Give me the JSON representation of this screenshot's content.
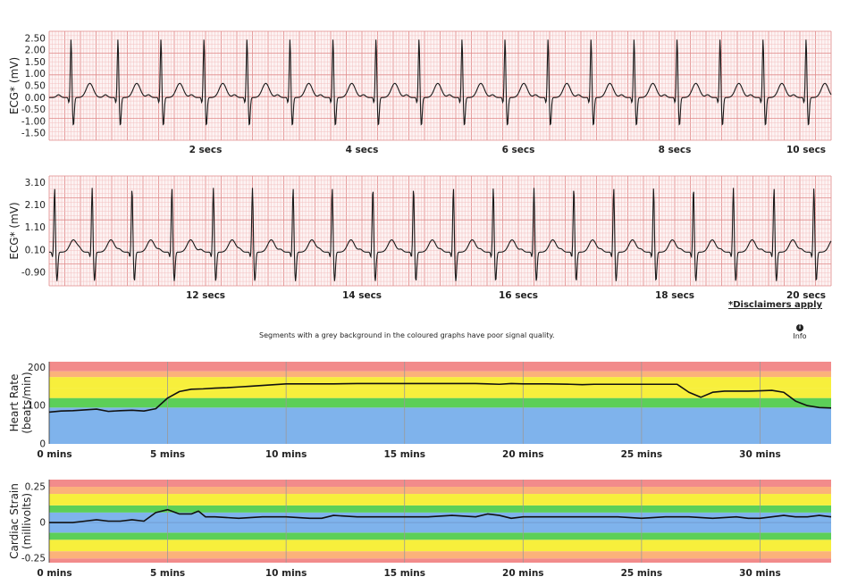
{
  "colors": {
    "grid_minor": "#f2c0c0",
    "grid_major": "#e08a8a",
    "ecg_bg": "#fdf3f3",
    "trace": "#1a1a1a",
    "zone_red": "#f28b8b",
    "zone_orange": "#fbb27a",
    "zone_yellow": "#f7ef3c",
    "zone_green": "#5ccf58",
    "zone_blue": "#7fb3ec",
    "grid_vline": "#9a9a9a"
  },
  "notes": {
    "disclaimer": "*Disclaimers apply",
    "signal_quality": "Segments with a grey background in the coloured graphs have poor signal quality.",
    "info_label": "Info",
    "info_icon": "info-icon"
  },
  "chart_data": [
    {
      "type": "line",
      "ylabel": "ECG* (mV)",
      "xlim": [
        0,
        10
      ],
      "ylim": [
        -1.8,
        2.8
      ],
      "yticks": [
        "2.50",
        "2.00",
        "1.50",
        "1.00",
        "0.50",
        "0.00",
        "-0.50",
        "-1.00",
        "-1.50"
      ],
      "ytick_values": [
        2.5,
        2.0,
        1.5,
        1.0,
        0.5,
        0.0,
        -0.5,
        -1.0,
        -1.5
      ],
      "xtick_labels": [
        "2 secs",
        "4 secs",
        "6 secs",
        "8 secs",
        "10 secs"
      ],
      "xtick_values": [
        2,
        4,
        6,
        8,
        10
      ],
      "beat_times": [
        0.28,
        0.88,
        1.43,
        1.98,
        2.53,
        3.08,
        3.63,
        4.18,
        4.73,
        5.28,
        5.83,
        6.38,
        6.93,
        7.48,
        8.03,
        8.58,
        9.13,
        9.68
      ],
      "r_amplitude_mV": 2.5,
      "s_amplitude_mV": -1.2,
      "t_amplitude_mV": 0.6
    },
    {
      "type": "line",
      "ylabel": "ECG* (mV)",
      "xlim": [
        10,
        20
      ],
      "ylim": [
        -1.5,
        3.4
      ],
      "yticks": [
        "3.10",
        "2.10",
        "1.10",
        "0.10",
        "-0.90"
      ],
      "ytick_values": [
        3.1,
        2.1,
        1.1,
        0.1,
        -0.9
      ],
      "xtick_labels": [
        "12 secs",
        "14 secs",
        "16 secs",
        "18 secs",
        "20 secs"
      ],
      "xtick_values": [
        12,
        14,
        16,
        18,
        20
      ],
      "beat_times": [
        10.07,
        10.55,
        11.06,
        11.57,
        12.1,
        12.6,
        13.12,
        13.62,
        14.14,
        14.66,
        15.17,
        15.68,
        16.2,
        16.71,
        17.22,
        17.73,
        18.24,
        18.75,
        19.27,
        19.78
      ],
      "r_amplitude_mV": 2.9,
      "s_amplitude_mV": -1.3,
      "t_amplitude_mV": 0.55
    },
    {
      "type": "area",
      "ylabel": "Heart Rate\n(beats/min)",
      "xlim": [
        0,
        33
      ],
      "ylim": [
        0,
        215
      ],
      "yticks": [
        "200",
        "100",
        "0"
      ],
      "ytick_values": [
        200,
        100,
        0
      ],
      "xtick_labels": [
        "0 mins",
        "5 mins",
        "10 mins",
        "15 mins",
        "20 mins",
        "25 mins",
        "30 mins"
      ],
      "xtick_values": [
        0,
        5,
        10,
        15,
        20,
        25,
        30
      ],
      "zones": [
        {
          "from": 0,
          "to": 95,
          "color": "zone_blue"
        },
        {
          "from": 95,
          "to": 120,
          "color": "zone_green"
        },
        {
          "from": 120,
          "to": 145,
          "color": "zone_yellow"
        },
        {
          "from": 145,
          "to": 175,
          "color": "zone_yellow"
        },
        {
          "from": 175,
          "to": 190,
          "color": "zone_orange"
        },
        {
          "from": 190,
          "to": 215,
          "color": "zone_red"
        }
      ],
      "x": [
        0,
        0.5,
        1,
        1.5,
        2,
        2.5,
        3,
        3.5,
        4,
        4.5,
        5,
        5.5,
        6,
        6.5,
        7,
        7.5,
        8,
        8.5,
        9,
        9.5,
        10,
        11,
        12,
        13,
        14,
        15,
        16,
        17,
        18,
        18.5,
        19,
        19.5,
        20,
        21,
        22,
        22.5,
        23,
        24,
        25,
        26,
        26.5,
        27,
        27.5,
        28,
        28.5,
        29,
        29.5,
        30,
        30.5,
        31,
        31.5,
        32,
        32.5,
        33
      ],
      "values": [
        83,
        86,
        87,
        89,
        91,
        85,
        87,
        88,
        86,
        92,
        120,
        137,
        143,
        144,
        146,
        147,
        149,
        151,
        153,
        155,
        157,
        157,
        157,
        158,
        158,
        158,
        158,
        158,
        158,
        157,
        156,
        158,
        157,
        157,
        156,
        155,
        156,
        156,
        156,
        156,
        156,
        135,
        122,
        135,
        138,
        138,
        138,
        139,
        140,
        135,
        112,
        100,
        95,
        94
      ]
    },
    {
      "type": "area",
      "ylabel": "Cardiac Strain\n(millivolts)",
      "xlim": [
        0,
        33
      ],
      "ylim": [
        -0.28,
        0.3
      ],
      "yticks": [
        "0.25",
        "0",
        "-0.25"
      ],
      "ytick_values": [
        0.25,
        0,
        -0.25
      ],
      "xtick_labels": [
        "0 mins",
        "5 mins",
        "10 mins",
        "15 mins",
        "20 mins",
        "25 mins",
        "30 mins"
      ],
      "xtick_values": [
        0,
        5,
        10,
        15,
        20,
        25,
        30
      ],
      "zones": [
        {
          "from": -0.3,
          "to": -0.25,
          "color": "zone_red"
        },
        {
          "from": -0.25,
          "to": -0.2,
          "color": "zone_orange"
        },
        {
          "from": -0.2,
          "to": -0.12,
          "color": "zone_yellow"
        },
        {
          "from": -0.12,
          "to": -0.07,
          "color": "zone_green"
        },
        {
          "from": -0.07,
          "to": 0.07,
          "color": "zone_blue"
        },
        {
          "from": 0.07,
          "to": 0.12,
          "color": "zone_green"
        },
        {
          "from": 0.12,
          "to": 0.2,
          "color": "zone_yellow"
        },
        {
          "from": 0.2,
          "to": 0.25,
          "color": "zone_orange"
        },
        {
          "from": 0.25,
          "to": 0.3,
          "color": "zone_red"
        }
      ],
      "x": [
        0,
        1,
        1.5,
        2,
        2.5,
        3,
        3.5,
        4,
        4.5,
        5,
        5.5,
        6,
        6.3,
        6.6,
        7,
        8,
        9,
        10,
        11,
        11.5,
        12,
        13,
        14,
        15,
        16,
        17,
        18,
        18.5,
        19,
        19.5,
        20,
        21,
        22,
        23,
        24,
        25,
        26,
        27,
        28,
        29,
        29.5,
        30,
        30.5,
        31,
        31.5,
        32,
        32.5,
        33
      ],
      "values": [
        0.0,
        0.0,
        0.01,
        0.02,
        0.01,
        0.01,
        0.02,
        0.01,
        0.07,
        0.09,
        0.06,
        0.06,
        0.08,
        0.04,
        0.04,
        0.03,
        0.04,
        0.04,
        0.03,
        0.03,
        0.05,
        0.04,
        0.04,
        0.04,
        0.04,
        0.05,
        0.04,
        0.06,
        0.05,
        0.03,
        0.04,
        0.04,
        0.04,
        0.04,
        0.04,
        0.03,
        0.04,
        0.04,
        0.03,
        0.04,
        0.03,
        0.03,
        0.04,
        0.05,
        0.04,
        0.04,
        0.05,
        0.04
      ]
    }
  ]
}
